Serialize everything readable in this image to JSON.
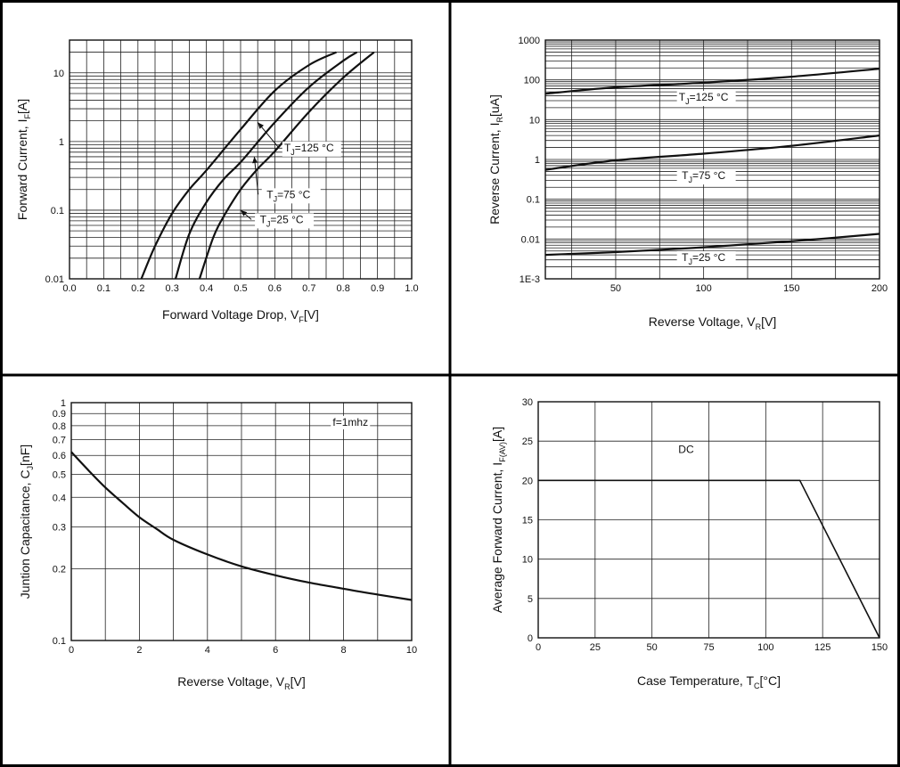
{
  "colors": {
    "line": "#111111",
    "grid": "#222222",
    "background": "#ffffff",
    "frame": "#000000"
  },
  "chart_data": [
    {
      "type": "line",
      "xlabel": {
        "main": "Forward Voltage Drop, V",
        "sub": "F",
        "suffix": "[V]"
      },
      "ylabel": {
        "main": "Forward Current, I",
        "sub": "F",
        "suffix": "[A]"
      },
      "xlim": [
        0.0,
        1.0
      ],
      "ylim": [
        0.01,
        30
      ],
      "yscale": "log",
      "grid": true,
      "x_ticks": [
        "0.0",
        "0.1",
        "0.2",
        "0.3",
        "0.4",
        "0.5",
        "0.6",
        "0.7",
        "0.8",
        "0.9",
        "1.0"
      ],
      "y_ticks": [
        {
          "value": 0.01,
          "label": "0.01"
        },
        {
          "value": 0.1,
          "label": "0.1"
        },
        {
          "value": 1,
          "label": "1"
        },
        {
          "value": 10,
          "label": "10"
        }
      ],
      "series": [
        {
          "name": "TJ=125 °C",
          "x": [
            0.21,
            0.25,
            0.3,
            0.35,
            0.4,
            0.5,
            0.6,
            0.7,
            0.78
          ],
          "y": [
            0.01,
            0.03,
            0.09,
            0.2,
            0.38,
            1.5,
            5.5,
            13,
            20
          ]
        },
        {
          "name": "TJ=75 °C",
          "x": [
            0.31,
            0.35,
            0.4,
            0.45,
            0.5,
            0.6,
            0.7,
            0.8,
            0.84
          ],
          "y": [
            0.01,
            0.045,
            0.13,
            0.28,
            0.5,
            1.9,
            6.2,
            15,
            20
          ]
        },
        {
          "name": "TJ=25 °C",
          "x": [
            0.38,
            0.42,
            0.45,
            0.5,
            0.55,
            0.6,
            0.7,
            0.8,
            0.89
          ],
          "y": [
            0.01,
            0.04,
            0.08,
            0.2,
            0.4,
            0.72,
            2.7,
            8.5,
            20
          ]
        }
      ],
      "annotations": [
        {
          "label": {
            "main": "T",
            "sub": "J",
            "rest": "=125 °C"
          },
          "x": 0.7,
          "y": 0.72,
          "arrow_to": [
            0.55,
            1.9
          ]
        },
        {
          "label": {
            "main": "T",
            "sub": "J",
            "rest": "=75 °C"
          },
          "x": 0.64,
          "y": 0.15,
          "arrow_to": [
            0.54,
            0.6
          ]
        },
        {
          "label": {
            "main": "T",
            "sub": "J",
            "rest": "=25 °C"
          },
          "x": 0.62,
          "y": 0.065,
          "arrow_to": [
            0.5,
            0.1
          ]
        }
      ]
    },
    {
      "type": "line",
      "xlabel": {
        "main": "Reverse Voltage, V",
        "sub": "R",
        "suffix": "[V]"
      },
      "ylabel": {
        "main": "Reverse Current, I",
        "sub": "R",
        "suffix": "[uA]"
      },
      "xlim": [
        10,
        200
      ],
      "ylim": [
        0.001,
        1000
      ],
      "yscale": "log",
      "grid": true,
      "x_ticks": [
        {
          "value": 50,
          "label": "50"
        },
        {
          "value": 100,
          "label": "100"
        },
        {
          "value": 150,
          "label": "150"
        },
        {
          "value": 200,
          "label": "200"
        }
      ],
      "y_ticks": [
        {
          "value": 0.001,
          "label": "1E-3"
        },
        {
          "value": 0.01,
          "label": "0.01"
        },
        {
          "value": 0.1,
          "label": "0.1"
        },
        {
          "value": 1,
          "label": "1"
        },
        {
          "value": 10,
          "label": "10"
        },
        {
          "value": 100,
          "label": "100"
        },
        {
          "value": 1000,
          "label": "1000"
        }
      ],
      "series": [
        {
          "name": "TJ=125 °C",
          "x": [
            10,
            50,
            100,
            150,
            200
          ],
          "y": [
            45,
            65,
            85,
            120,
            190
          ]
        },
        {
          "name": "TJ=75 °C",
          "x": [
            10,
            50,
            100,
            150,
            200
          ],
          "y": [
            0.55,
            0.95,
            1.4,
            2.2,
            4
          ]
        },
        {
          "name": "TJ=25 °C",
          "x": [
            10,
            50,
            100,
            150,
            200
          ],
          "y": [
            0.004,
            0.0047,
            0.0062,
            0.0088,
            0.0135
          ]
        }
      ],
      "annotations": [
        {
          "label": {
            "main": "T",
            "sub": "J",
            "rest": "=125 °C"
          },
          "x": 100,
          "y": 30
        },
        {
          "label": {
            "main": "T",
            "sub": "J",
            "rest": "=75 °C"
          },
          "x": 100,
          "y": 0.32
        },
        {
          "label": {
            "main": "T",
            "sub": "J",
            "rest": "=25 °C"
          },
          "x": 100,
          "y": 0.0028
        }
      ]
    },
    {
      "type": "line",
      "xlabel": {
        "main": "Reverse Voltage, V",
        "sub": "R",
        "suffix": "[V]"
      },
      "ylabel": {
        "main": "Juntion Capacitance, C",
        "sub": "J",
        "suffix": "[nF]"
      },
      "xlim": [
        0,
        10
      ],
      "ylim": [
        0.1,
        1
      ],
      "yscale": "log",
      "grid": true,
      "x_ticks": [
        {
          "value": 0,
          "label": "0"
        },
        {
          "value": 2,
          "label": "2"
        },
        {
          "value": 4,
          "label": "4"
        },
        {
          "value": 6,
          "label": "6"
        },
        {
          "value": 8,
          "label": "8"
        },
        {
          "value": 10,
          "label": "10"
        }
      ],
      "y_ticks": [
        {
          "value": 0.1,
          "label": "0.1"
        },
        {
          "value": 0.2,
          "label": "0.2"
        },
        {
          "value": 0.3,
          "label": "0.3"
        },
        {
          "value": 0.4,
          "label": "0.4"
        },
        {
          "value": 0.5,
          "label": "0.5"
        },
        {
          "value": 0.6,
          "label": "0.6"
        },
        {
          "value": 0.7,
          "label": "0.7"
        },
        {
          "value": 0.8,
          "label": "0.8"
        },
        {
          "value": 0.9,
          "label": "0.9"
        },
        {
          "value": 1,
          "label": "1"
        }
      ],
      "series": [
        {
          "name": "",
          "x": [
            0,
            0.5,
            1,
            1.5,
            2,
            2.5,
            3,
            4,
            5,
            6,
            7,
            8,
            9,
            10
          ],
          "y": [
            0.62,
            0.52,
            0.44,
            0.38,
            0.33,
            0.295,
            0.265,
            0.23,
            0.205,
            0.188,
            0.175,
            0.165,
            0.156,
            0.148
          ]
        }
      ],
      "annotations": [
        {
          "text": "f=1mhz",
          "x": 8.2,
          "y": 0.8
        }
      ]
    },
    {
      "type": "line",
      "xlabel": {
        "main": "Case Temperature, T",
        "sub": "C",
        "suffix": "[°C]"
      },
      "ylabel": {
        "main": "Average Forward Current, I",
        "sub": "F(AV)",
        "suffix": "[A]"
      },
      "xlim": [
        0,
        150
      ],
      "ylim": [
        0,
        30
      ],
      "yscale": "linear",
      "grid": true,
      "x_ticks": [
        {
          "value": 0,
          "label": "0"
        },
        {
          "value": 25,
          "label": "25"
        },
        {
          "value": 50,
          "label": "50"
        },
        {
          "value": 75,
          "label": "75"
        },
        {
          "value": 100,
          "label": "100"
        },
        {
          "value": 125,
          "label": "125"
        },
        {
          "value": 150,
          "label": "150"
        }
      ],
      "y_ticks": [
        {
          "value": 0,
          "label": "0"
        },
        {
          "value": 5,
          "label": "5"
        },
        {
          "value": 10,
          "label": "10"
        },
        {
          "value": 15,
          "label": "15"
        },
        {
          "value": 20,
          "label": "20"
        },
        {
          "value": 25,
          "label": "25"
        },
        {
          "value": 30,
          "label": "30"
        }
      ],
      "series": [
        {
          "name": "DC",
          "x": [
            0,
            115,
            150
          ],
          "y": [
            20,
            20,
            0
          ]
        }
      ],
      "annotations": [
        {
          "text": "DC",
          "x": 65,
          "y": 23.5
        }
      ]
    }
  ]
}
